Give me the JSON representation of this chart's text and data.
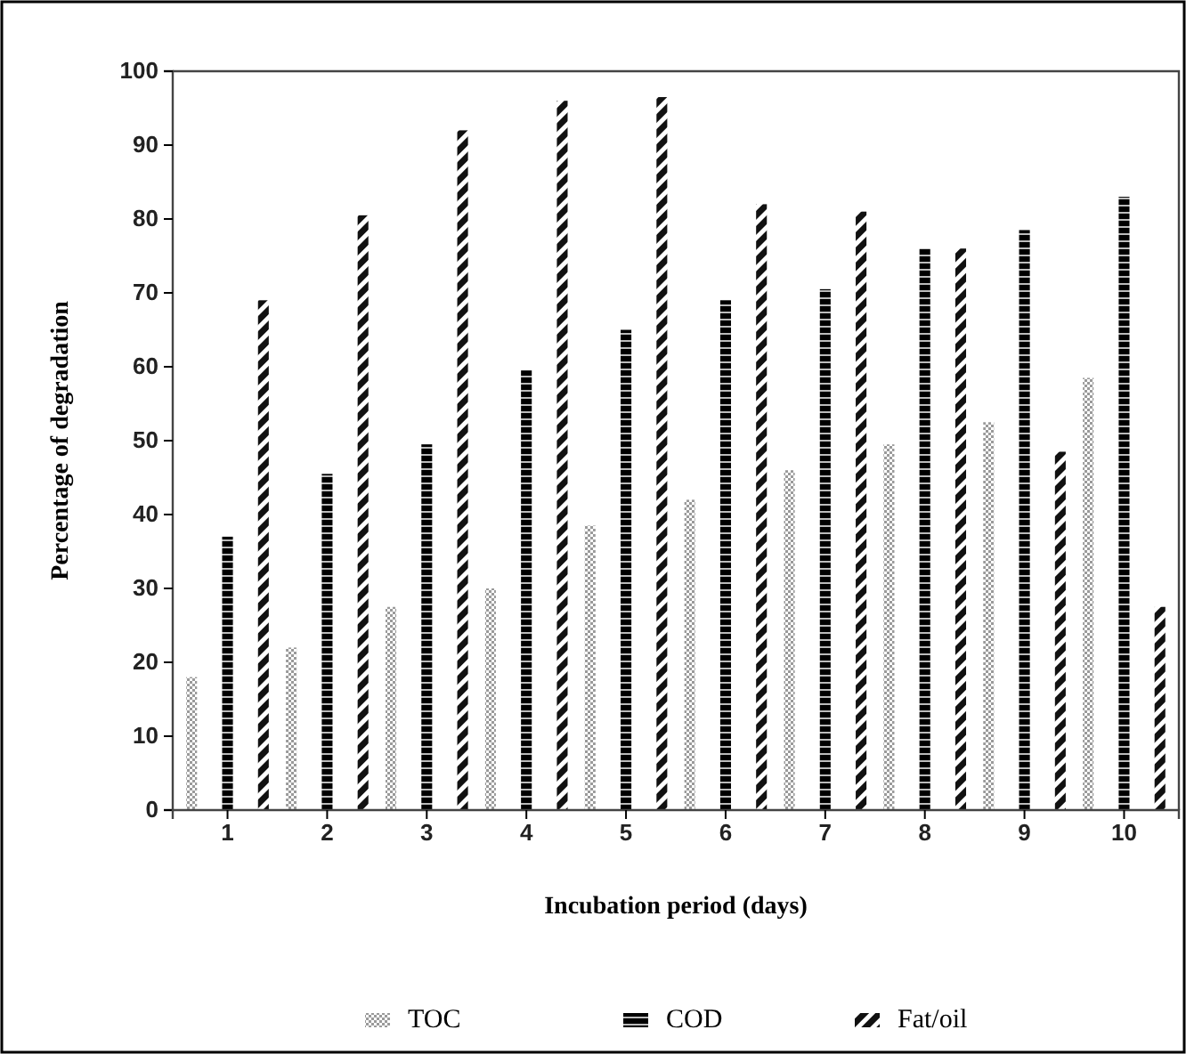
{
  "chart_data": {
    "type": "bar",
    "xlabel": "Incubation period (days)",
    "ylabel": "Percentage of degradation",
    "categories": [
      "1",
      "2",
      "3",
      "4",
      "5",
      "6",
      "7",
      "8",
      "9",
      "10"
    ],
    "series": [
      {
        "name": "TOC",
        "color": "#9a9a9a",
        "values": [
          18,
          22,
          27.5,
          30,
          38.5,
          42,
          46,
          49.5,
          52.5,
          58.5
        ]
      },
      {
        "name": "COD",
        "color": "#000000",
        "values": [
          37,
          45.5,
          49.5,
          59.5,
          65,
          69,
          70.5,
          76,
          78.5,
          83
        ]
      },
      {
        "name": "Fat/oil",
        "color": "#111111",
        "values": [
          69,
          80.5,
          92,
          96,
          96.5,
          82,
          81,
          76,
          48.5,
          27.5
        ]
      }
    ],
    "ylim": [
      0,
      100
    ],
    "yticks": [
      0,
      10,
      20,
      30,
      40,
      50,
      60,
      70,
      80,
      90,
      100
    ],
    "grid": false,
    "legend": "bottom"
  }
}
